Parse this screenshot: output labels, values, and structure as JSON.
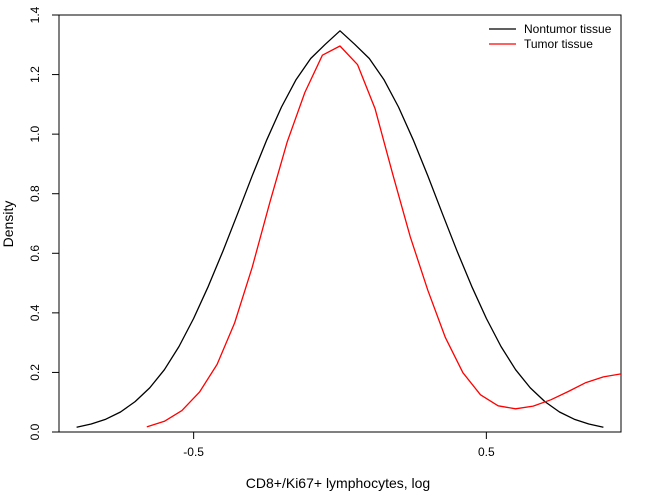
{
  "chart_data": {
    "type": "line",
    "title": "",
    "xlabel": "CD8+/Ki67+ lymphocytes, log",
    "ylabel": "Density",
    "xlim": [
      -0.96,
      0.96
    ],
    "ylim": [
      0,
      1.4
    ],
    "x_ticks": [
      -0.5,
      0.5
    ],
    "x_tick_labels": [
      "-0.5",
      "0.5"
    ],
    "y_ticks": [
      0.0,
      0.2,
      0.4,
      0.6,
      0.8,
      1.0,
      1.2,
      1.4
    ],
    "y_tick_labels": [
      "0.0",
      "0.2",
      "0.4",
      "0.6",
      "0.8",
      "1.0",
      "1.2",
      "1.4"
    ],
    "grid": false,
    "legend": {
      "position": "top-right"
    },
    "series": [
      {
        "name": "Nontumor tissue",
        "color": "#000000",
        "x": [
          -0.9,
          -0.85,
          -0.8,
          -0.75,
          -0.7,
          -0.65,
          -0.6,
          -0.55,
          -0.5,
          -0.45,
          -0.4,
          -0.35,
          -0.3,
          -0.25,
          -0.2,
          -0.15,
          -0.1,
          -0.05,
          0.0,
          0.05,
          0.1,
          0.15,
          0.2,
          0.25,
          0.3,
          0.35,
          0.4,
          0.45,
          0.5,
          0.55,
          0.6,
          0.65,
          0.7,
          0.75,
          0.8,
          0.85,
          0.9
        ],
        "y": [
          0.016,
          0.027,
          0.043,
          0.067,
          0.102,
          0.148,
          0.209,
          0.287,
          0.381,
          0.489,
          0.607,
          0.733,
          0.86,
          0.981,
          1.091,
          1.183,
          1.254,
          1.302,
          1.347,
          1.302,
          1.254,
          1.183,
          1.091,
          0.981,
          0.86,
          0.733,
          0.607,
          0.489,
          0.381,
          0.287,
          0.209,
          0.148,
          0.102,
          0.067,
          0.043,
          0.027,
          0.016
        ]
      },
      {
        "name": "Tumor tissue",
        "color": "#ff0000",
        "x": [
          -0.66,
          -0.6,
          -0.54,
          -0.48,
          -0.42,
          -0.36,
          -0.3,
          -0.24,
          -0.18,
          -0.12,
          -0.06,
          0.0,
          0.06,
          0.12,
          0.18,
          0.24,
          0.3,
          0.36,
          0.42,
          0.48,
          0.54,
          0.6,
          0.66,
          0.72,
          0.78,
          0.84,
          0.9,
          0.96
        ],
        "y": [
          0.017,
          0.036,
          0.072,
          0.134,
          0.227,
          0.366,
          0.553,
          0.77,
          0.975,
          1.14,
          1.265,
          1.296,
          1.233,
          1.085,
          0.866,
          0.655,
          0.476,
          0.317,
          0.199,
          0.125,
          0.088,
          0.078,
          0.087,
          0.108,
          0.136,
          0.166,
          0.185,
          0.195
        ]
      }
    ]
  }
}
